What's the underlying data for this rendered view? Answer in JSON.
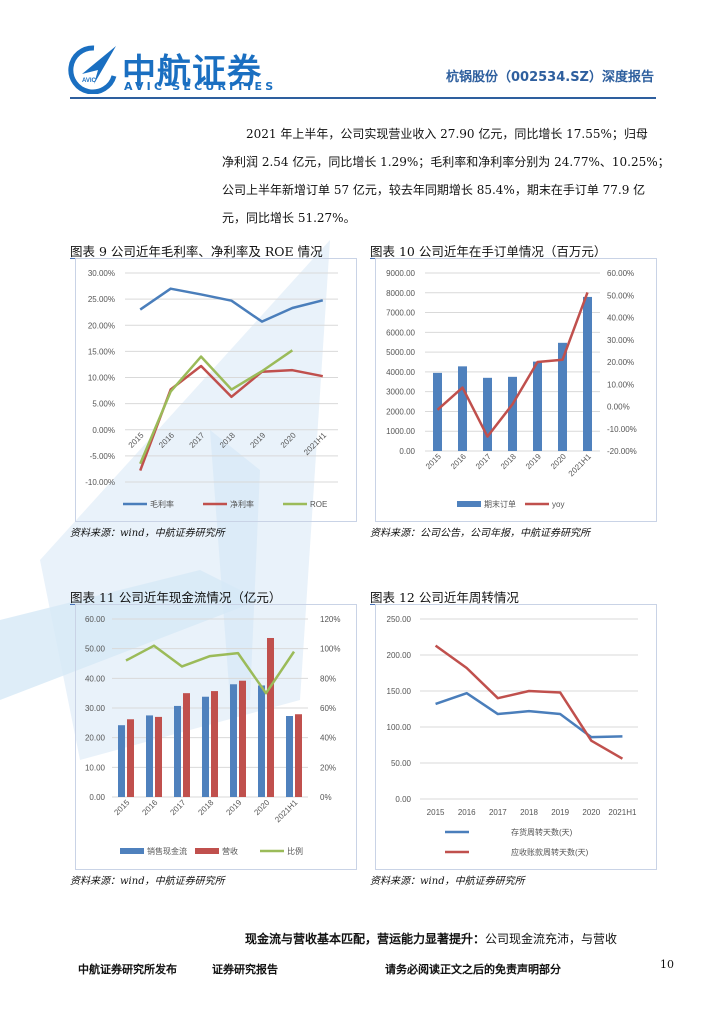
{
  "header": {
    "logo_cn": "中航证券",
    "logo_en": "AVIC SECURITIES",
    "logo_badge": "AVIC",
    "report_title": "杭锅股份（002534.SZ）深度报告"
  },
  "paragraph": [
    "2021 年上半年，公司实现营业收入 27.90 亿元，同比增长 17.55%；归母",
    "净利润 2.54 亿元，同比增长 1.29%；毛利率和净利率分别为 24.77%、10.25%；",
    "公司上半年新增订单 57 亿元，较去年同期增长 85.4%，期末在手订单 77.9 亿",
    "元，同比增长 51.27%。"
  ],
  "figures": [
    {
      "title": "图表 9 公司近年毛利率、净利率及 ROE 情况",
      "source": "资料来源：wind，中航证券研究所"
    },
    {
      "title": "图表 10 公司近年在手订单情况（百万元）",
      "source": "资料来源：公司公告，公司年报，中航证券研究所"
    },
    {
      "title": "图表 11 公司近年现金流情况（亿元）",
      "source": "资料来源：wind，中航证券研究所"
    },
    {
      "title": "图表 12 公司近年周转情况",
      "source": "资料来源：wind，中航证券研究所"
    }
  ],
  "chart_data": [
    {
      "type": "line",
      "categories": [
        "2015",
        "2016",
        "2017",
        "2018",
        "2019",
        "2020",
        "2021H1"
      ],
      "ylim": [
        -10,
        30
      ],
      "yticks": [
        "30.00%",
        "25.00%",
        "20.00%",
        "15.00%",
        "10.00%",
        "5.00%",
        "0.00%",
        "-5.00%",
        "-10.00%"
      ],
      "grid": true,
      "legend": "bottom",
      "series": [
        {
          "name": "毛利率",
          "color": "#4a7ebb",
          "values": [
            23.0,
            27.0,
            25.9,
            24.7,
            20.7,
            23.3,
            24.77
          ]
        },
        {
          "name": "净利率",
          "color": "#c0504d",
          "values": [
            -7.8,
            7.7,
            12.2,
            6.3,
            11.1,
            11.4,
            10.25
          ]
        },
        {
          "name": "ROE",
          "color": "#9bbb59",
          "values": [
            -6.5,
            7.3,
            14.0,
            7.7,
            11.2,
            15.2,
            null
          ]
        }
      ]
    },
    {
      "type": "bar+line",
      "categories": [
        "2015",
        "2016",
        "2017",
        "2018",
        "2019",
        "2020",
        "2021H1"
      ],
      "ylim": [
        0,
        9000
      ],
      "yticks": [
        "9000.00",
        "8000.00",
        "7000.00",
        "6000.00",
        "5000.00",
        "4000.00",
        "3000.00",
        "2000.00",
        "1000.00",
        "0.00"
      ],
      "y2lim": [
        -20,
        60
      ],
      "y2ticks": [
        "60.00%",
        "50.00%",
        "40.00%",
        "30.00%",
        "20.00%",
        "10.00%",
        "0.00%",
        "-10.00%",
        "-20.00%"
      ],
      "grid": true,
      "legend": "bottom",
      "series": [
        {
          "name": "期末订单",
          "type": "bar",
          "axis": "left",
          "color": "#4f81bd",
          "values": [
            3950,
            4280,
            3700,
            3750,
            4520,
            5470,
            7790
          ]
        },
        {
          "name": "yoy",
          "type": "line",
          "axis": "right",
          "color": "#c0504d",
          "values": [
            -1.5,
            8.5,
            -13.5,
            1.0,
            20.0,
            21.0,
            51.27
          ]
        }
      ]
    },
    {
      "type": "bar+line",
      "categories": [
        "2015",
        "2016",
        "2017",
        "2018",
        "2019",
        "2020",
        "2021H1"
      ],
      "ylim": [
        0,
        60
      ],
      "yticks": [
        "60.00",
        "50.00",
        "40.00",
        "30.00",
        "20.00",
        "10.00",
        "0.00"
      ],
      "y2lim": [
        0,
        120
      ],
      "y2ticks": [
        "120%",
        "100%",
        "80%",
        "60%",
        "40%",
        "20%",
        "0%"
      ],
      "grid": true,
      "legend": "bottom",
      "series": [
        {
          "name": "销售现金流",
          "type": "bar",
          "axis": "left",
          "color": "#4f81bd",
          "values": [
            24.2,
            27.5,
            30.7,
            33.8,
            38.0,
            37.6,
            27.3
          ]
        },
        {
          "name": "营收",
          "type": "bar",
          "axis": "left",
          "color": "#c0504d",
          "values": [
            26.2,
            27.0,
            35.0,
            35.7,
            39.2,
            53.6,
            27.9
          ]
        },
        {
          "name": "比例",
          "type": "line",
          "axis": "right",
          "color": "#9bbb59",
          "values": [
            92,
            102,
            88,
            95,
            97,
            70,
            98
          ]
        }
      ]
    },
    {
      "type": "line",
      "categories": [
        "2015",
        "2016",
        "2017",
        "2018",
        "2019",
        "2020",
        "2021H1"
      ],
      "ylim": [
        0,
        250
      ],
      "yticks": [
        "250.00",
        "200.00",
        "150.00",
        "100.00",
        "50.00",
        "0.00"
      ],
      "grid": true,
      "legend": "bottom",
      "series": [
        {
          "name": "存货周转天数(天)",
          "color": "#4a7ebb",
          "values": [
            132,
            147,
            118,
            122,
            118,
            86,
            87
          ]
        },
        {
          "name": "应收账款周转天数(天)",
          "color": "#c0504d",
          "values": [
            213,
            182,
            140,
            150,
            148,
            81,
            56
          ]
        }
      ]
    }
  ],
  "section": {
    "bold_lead": "现金流与营收基本匹配，营运能力显著提升：",
    "text": "公司现金流充沛，与营收"
  },
  "footer": {
    "left": "中航证券研究所发布",
    "middle": "证券研究报告",
    "right": "请务必阅读正文之后的免责声明部分",
    "page": "10"
  },
  "colors": {
    "brand": "#1a6fc1",
    "header_text": "#2e5f9e",
    "watermark": "#dcebf7"
  }
}
